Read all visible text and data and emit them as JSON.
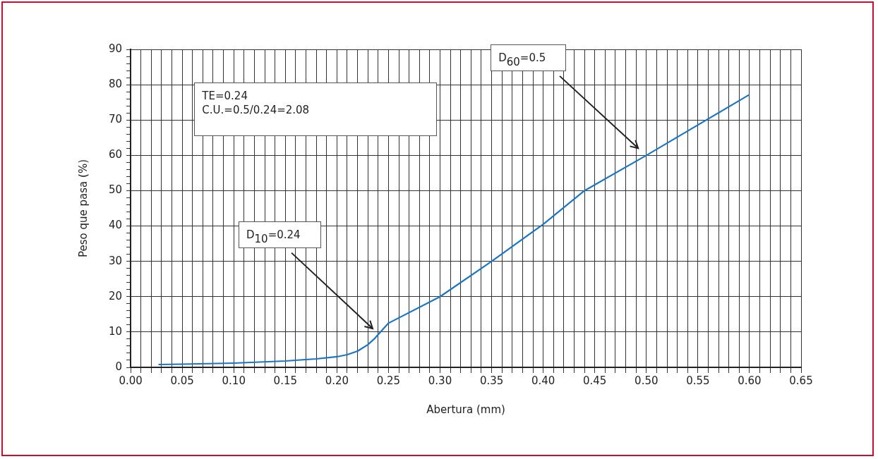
{
  "chart_data": {
    "type": "line",
    "xlabel": "Abertura (mm)",
    "ylabel": "Peso que pasa (%)",
    "x": [
      0.027,
      0.05,
      0.1,
      0.15,
      0.18,
      0.2,
      0.21,
      0.22,
      0.23,
      0.236,
      0.25,
      0.3,
      0.35,
      0.4,
      0.44,
      0.5,
      0.6
    ],
    "series": [
      {
        "color": "#1a75c4",
        "values": [
          0.8,
          0.9,
          1.2,
          1.8,
          2.4,
          3.0,
          3.6,
          4.6,
          6.4,
          8.0,
          12.5,
          20,
          30,
          40.5,
          50,
          60,
          77.2
        ]
      }
    ],
    "xlim": [
      0,
      0.65
    ],
    "xticks": [
      {
        "value": 0,
        "label": "0.00"
      },
      {
        "value": 0.01,
        "label": null
      },
      {
        "value": 0.02,
        "label": null
      },
      {
        "value": 0.03,
        "label": null
      },
      {
        "value": 0.04,
        "label": null
      },
      {
        "value": 0.05,
        "label": "0.05"
      },
      {
        "value": 0.06,
        "label": null
      },
      {
        "value": 0.07,
        "label": null
      },
      {
        "value": 0.08,
        "label": null
      },
      {
        "value": 0.09,
        "label": null
      },
      {
        "value": 0.1,
        "label": "0.10"
      },
      {
        "value": 0.11,
        "label": null
      },
      {
        "value": 0.12,
        "label": null
      },
      {
        "value": 0.13,
        "label": null
      },
      {
        "value": 0.14,
        "label": null
      },
      {
        "value": 0.15,
        "label": "0.15"
      },
      {
        "value": 0.16,
        "label": null
      },
      {
        "value": 0.17,
        "label": null
      },
      {
        "value": 0.18,
        "label": null
      },
      {
        "value": 0.19,
        "label": null
      },
      {
        "value": 0.2,
        "label": "0.20"
      },
      {
        "value": 0.21,
        "label": null
      },
      {
        "value": 0.22,
        "label": null
      },
      {
        "value": 0.23,
        "label": null
      },
      {
        "value": 0.24,
        "label": null
      },
      {
        "value": 0.25,
        "label": "0.25"
      },
      {
        "value": 0.26,
        "label": null
      },
      {
        "value": 0.27,
        "label": null
      },
      {
        "value": 0.28,
        "label": null
      },
      {
        "value": 0.29,
        "label": null
      },
      {
        "value": 0.3,
        "label": "0.30"
      },
      {
        "value": 0.31,
        "label": null
      },
      {
        "value": 0.32,
        "label": null
      },
      {
        "value": 0.33,
        "label": null
      },
      {
        "value": 0.34,
        "label": null
      },
      {
        "value": 0.35,
        "label": "0.35"
      },
      {
        "value": 0.36,
        "label": null
      },
      {
        "value": 0.37,
        "label": null
      },
      {
        "value": 0.38,
        "label": null
      },
      {
        "value": 0.39,
        "label": null
      },
      {
        "value": 0.4,
        "label": "0.40"
      },
      {
        "value": 0.41,
        "label": null
      },
      {
        "value": 0.42,
        "label": null
      },
      {
        "value": 0.43,
        "label": null
      },
      {
        "value": 0.44,
        "label": null
      },
      {
        "value": 0.45,
        "label": "0.45"
      },
      {
        "value": 0.46,
        "label": null
      },
      {
        "value": 0.47,
        "label": null
      },
      {
        "value": 0.48,
        "label": null
      },
      {
        "value": 0.49,
        "label": null
      },
      {
        "value": 0.5,
        "label": "0.50"
      },
      {
        "value": 0.51,
        "label": null
      },
      {
        "value": 0.52,
        "label": null
      },
      {
        "value": 0.53,
        "label": null
      },
      {
        "value": 0.54,
        "label": null
      },
      {
        "value": 0.55,
        "label": "0.55"
      },
      {
        "value": 0.56,
        "label": null
      },
      {
        "value": 0.57,
        "label": null
      },
      {
        "value": 0.58,
        "label": null
      },
      {
        "value": 0.59,
        "label": null
      },
      {
        "value": 0.6,
        "label": "0.60"
      },
      {
        "value": 0.61,
        "label": null
      },
      {
        "value": 0.62,
        "label": null
      },
      {
        "value": 0.63,
        "label": null
      },
      {
        "value": 0.64,
        "label": null
      },
      {
        "value": 0.65,
        "label": "0.65"
      }
    ],
    "ylim": [
      0,
      90
    ],
    "yticks": [
      0,
      {
        "value": 2,
        "label": null
      },
      {
        "value": 4,
        "label": null
      },
      {
        "value": 6,
        "label": null
      },
      {
        "value": 8,
        "label": null
      },
      10,
      {
        "value": 12,
        "label": null
      },
      {
        "value": 14,
        "label": null
      },
      {
        "value": 16,
        "label": null
      },
      {
        "value": 18,
        "label": null
      },
      20,
      {
        "value": 22,
        "label": null
      },
      {
        "value": 24,
        "label": null
      },
      {
        "value": 26,
        "label": null
      },
      {
        "value": 28,
        "label": null
      },
      30,
      {
        "value": 32,
        "label": null
      },
      {
        "value": 34,
        "label": null
      },
      {
        "value": 36,
        "label": null
      },
      {
        "value": 38,
        "label": null
      },
      40,
      {
        "value": 42,
        "label": null
      },
      {
        "value": 44,
        "label": null
      },
      {
        "value": 46,
        "label": null
      },
      {
        "value": 48,
        "label": null
      },
      50,
      {
        "value": 52,
        "label": null
      },
      {
        "value": 54,
        "label": null
      },
      {
        "value": 56,
        "label": null
      },
      {
        "value": 58,
        "label": null
      },
      60,
      {
        "value": 62,
        "label": null
      },
      {
        "value": 64,
        "label": null
      },
      {
        "value": 66,
        "label": null
      },
      {
        "value": 68,
        "label": null
      },
      70,
      {
        "value": 72,
        "label": null
      },
      {
        "value": 74,
        "label": null
      },
      {
        "value": 76,
        "label": null
      },
      {
        "value": 78,
        "label": null
      },
      80,
      {
        "value": 82,
        "label": null
      },
      {
        "value": 84,
        "label": null
      },
      {
        "value": 86,
        "label": null
      },
      {
        "value": 88,
        "label": null
      },
      90
    ],
    "grid": true,
    "legend": false,
    "marker": "none",
    "line_style": "solid",
    "annotations": [
      "TE=0.24",
      "C.U.=0.5/0.24=2.08",
      "D$_{10}$=0.24",
      "D$_{60}$=0.5"
    ]
  }
}
